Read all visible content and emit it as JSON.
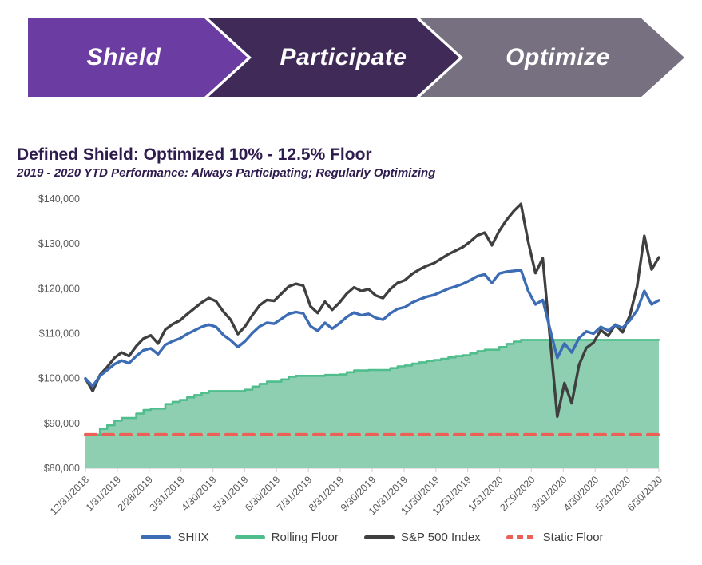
{
  "banner": {
    "steps": [
      {
        "label": "Shield",
        "color": "#6b3da2"
      },
      {
        "label": "Participate",
        "color": "#402a58"
      },
      {
        "label": "Optimize",
        "color": "#767080"
      }
    ]
  },
  "chart_data": {
    "type": "line",
    "title": "Defined Shield: Optimized 10% - 12.5% Floor",
    "subtitle": "2019 - 2020 YTD Performance: Always Participating; Regularly Optimizing",
    "ylim": [
      80000,
      140000
    ],
    "grid": false,
    "legend_position": "bottom",
    "axis_color": "#595959",
    "tick_color": "#d4d4d4",
    "y_ticks": [
      {
        "value": 80000,
        "label": "$80,000"
      },
      {
        "value": 90000,
        "label": "$90,000"
      },
      {
        "value": 100000,
        "label": "$100,000"
      },
      {
        "value": 110000,
        "label": "$110,000"
      },
      {
        "value": 120000,
        "label": "$120,000"
      },
      {
        "value": 130000,
        "label": "$130,000"
      },
      {
        "value": 140000,
        "label": "$140,000"
      }
    ],
    "x_tick_labels": [
      "12/31/2018",
      "1/31/2019",
      "2/28/2019",
      "3/31/2019",
      "4/30/2019",
      "5/31/2019",
      "6/30/2019",
      "7/31/2019",
      "8/31/2019",
      "9/30/2019",
      "10/31/2019",
      "11/30/2019",
      "12/31/2019",
      "1/31/2020",
      "2/29/2020",
      "3/31/2020",
      "4/30/2020",
      "5/31/2020",
      "6/30/2020"
    ],
    "series": [
      {
        "name": "SHIIX",
        "color": "#3c6cb4",
        "width": 3.4,
        "z": 3,
        "values": [
          100000,
          98300,
          100600,
          101900,
          103200,
          104000,
          103400,
          105000,
          106300,
          106700,
          105400,
          107500,
          108300,
          108900,
          109900,
          110700,
          111500,
          112000,
          111500,
          109700,
          108500,
          107000,
          108300,
          110100,
          111600,
          112400,
          112200,
          113300,
          114400,
          114800,
          114500,
          111700,
          110600,
          112400,
          111100,
          112300,
          113700,
          114700,
          114100,
          114400,
          113500,
          113100,
          114500,
          115500,
          115900,
          116900,
          117600,
          118200,
          118600,
          119300,
          120000,
          120500,
          121100,
          121900,
          122800,
          123200,
          121300,
          123400,
          123800,
          124000,
          124200,
          119500,
          116500,
          117500,
          111000,
          104600,
          107800,
          105800,
          109000,
          110500,
          110000,
          111500,
          110700,
          111900,
          111300,
          112900,
          115200,
          119500,
          116500,
          117400
        ]
      },
      {
        "name": "Rolling Floor",
        "color": "#4fbd8c",
        "fill": "#8ecfb2",
        "step": true,
        "width": 2.6,
        "z": 0,
        "values": [
          87500,
          87500,
          88800,
          89600,
          90600,
          91200,
          91200,
          92200,
          93000,
          93300,
          93300,
          94300,
          94800,
          95200,
          95800,
          96300,
          96800,
          97200,
          97200,
          97200,
          97200,
          97200,
          97500,
          98200,
          98800,
          99300,
          99300,
          99800,
          100400,
          100600,
          100600,
          100600,
          100600,
          100800,
          100800,
          100900,
          101400,
          101800,
          101800,
          101900,
          101900,
          101900,
          102300,
          102700,
          102900,
          103300,
          103600,
          103900,
          104100,
          104400,
          104700,
          105000,
          105200,
          105600,
          106100,
          106400,
          106400,
          107000,
          107700,
          108200,
          108600,
          108600,
          108600,
          108600,
          108600,
          108600,
          108600,
          108600,
          108600,
          108600,
          108600,
          108600,
          108600,
          108600,
          108600,
          108600,
          108600,
          108600,
          108600,
          108600
        ]
      },
      {
        "name": "S&P 500 Index",
        "color": "#3f3f3f",
        "width": 3.4,
        "z": 2,
        "values": [
          100000,
          97200,
          100800,
          102600,
          104600,
          105800,
          105000,
          107200,
          108900,
          109600,
          107800,
          110900,
          112100,
          112900,
          114300,
          115600,
          116900,
          117900,
          117200,
          114900,
          113100,
          109900,
          111600,
          114100,
          116300,
          117500,
          117300,
          118900,
          120500,
          121100,
          120700,
          116100,
          114600,
          117100,
          115300,
          116900,
          118900,
          120300,
          119500,
          119900,
          118500,
          117900,
          119900,
          121300,
          121900,
          123300,
          124300,
          125100,
          125700,
          126700,
          127700,
          128500,
          129300,
          130500,
          131900,
          132500,
          129700,
          132900,
          135300,
          137300,
          138900,
          130500,
          123500,
          126800,
          109000,
          91500,
          99000,
          94500,
          103000,
          106800,
          108000,
          110800,
          109500,
          112000,
          110300,
          114000,
          120500,
          131800,
          124300,
          127000
        ]
      },
      {
        "name": "Static Floor",
        "color": "#ed6056",
        "dashed": true,
        "width": 4,
        "z": 1,
        "values": [
          87500,
          87500
        ]
      }
    ]
  }
}
